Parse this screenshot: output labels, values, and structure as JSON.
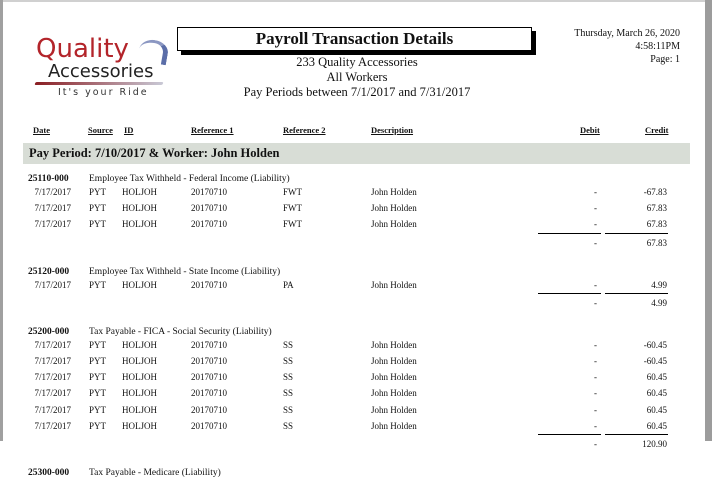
{
  "logo": {
    "line1": "Quality",
    "line2": "Accessories",
    "tagline": "It's your Ride"
  },
  "report": {
    "title": "Payroll Transaction Details",
    "company": "233 Quality Accessories",
    "workers": "All Workers",
    "period_range": "Pay Periods between 7/1/2017 and 7/31/2017"
  },
  "meta": {
    "date": "Thursday, March 26, 2020",
    "time": "4:58:11PM",
    "page": "Page: 1"
  },
  "columns": {
    "date": "Date",
    "source": "Source",
    "id": "ID",
    "ref1": "Reference 1",
    "ref2": "Reference 2",
    "description": "Description",
    "debit": "Debit",
    "credit": "Credit"
  },
  "pay_period": {
    "label": "Pay Period: 7/10/2017 & Worker: John Holden"
  },
  "groups": [
    {
      "account": "25110-000",
      "name": "Employee Tax Withheld - Federal Income",
      "type": "(Liability)",
      "rows": [
        {
          "date": "7/17/2017",
          "source": "PYT",
          "id": "HOLJOH",
          "ref1": "20170710",
          "ref2": "FWT",
          "description": "John Holden",
          "debit": "-",
          "credit": "-67.83"
        },
        {
          "date": "7/17/2017",
          "source": "PYT",
          "id": "HOLJOH",
          "ref1": "20170710",
          "ref2": "FWT",
          "description": "John Holden",
          "debit": "-",
          "credit": "67.83"
        },
        {
          "date": "7/17/2017",
          "source": "PYT",
          "id": "HOLJOH",
          "ref1": "20170710",
          "ref2": "FWT",
          "description": "John Holden",
          "debit": "-",
          "credit": "67.83"
        }
      ],
      "total_debit": "-",
      "total_credit": "67.83"
    },
    {
      "account": "25120-000",
      "name": "Employee Tax Withheld - State Income",
      "type": "(Liability)",
      "rows": [
        {
          "date": "7/17/2017",
          "source": "PYT",
          "id": "HOLJOH",
          "ref1": "20170710",
          "ref2": "PA",
          "description": "John Holden",
          "debit": "-",
          "credit": "4.99"
        }
      ],
      "total_debit": "-",
      "total_credit": "4.99"
    },
    {
      "account": "25200-000",
      "name": "Tax Payable - FICA - Social Security",
      "type": "(Liability)",
      "rows": [
        {
          "date": "7/17/2017",
          "source": "PYT",
          "id": "HOLJOH",
          "ref1": "20170710",
          "ref2": "SS",
          "description": "John Holden",
          "debit": "-",
          "credit": "-60.45"
        },
        {
          "date": "7/17/2017",
          "source": "PYT",
          "id": "HOLJOH",
          "ref1": "20170710",
          "ref2": "SS",
          "description": "John Holden",
          "debit": "-",
          "credit": "-60.45"
        },
        {
          "date": "7/17/2017",
          "source": "PYT",
          "id": "HOLJOH",
          "ref1": "20170710",
          "ref2": "SS",
          "description": "John Holden",
          "debit": "-",
          "credit": "60.45"
        },
        {
          "date": "7/17/2017",
          "source": "PYT",
          "id": "HOLJOH",
          "ref1": "20170710",
          "ref2": "SS",
          "description": "John Holden",
          "debit": "-",
          "credit": "60.45"
        },
        {
          "date": "7/17/2017",
          "source": "PYT",
          "id": "HOLJOH",
          "ref1": "20170710",
          "ref2": "SS",
          "description": "John Holden",
          "debit": "-",
          "credit": "60.45"
        },
        {
          "date": "7/17/2017",
          "source": "PYT",
          "id": "HOLJOH",
          "ref1": "20170710",
          "ref2": "SS",
          "description": "John Holden",
          "debit": "-",
          "credit": "60.45"
        }
      ],
      "total_debit": "-",
      "total_credit": "120.90"
    },
    {
      "account": "25300-000",
      "name": "Tax Payable - Medicare",
      "type": "(Liability)",
      "rows": []
    }
  ]
}
